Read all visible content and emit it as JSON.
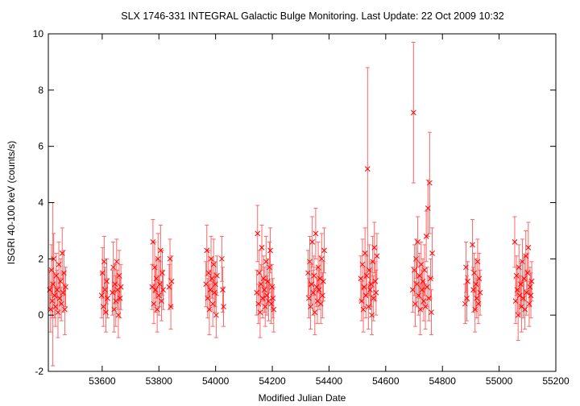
{
  "chart_data": {
    "type": "scatter",
    "title": "SLX 1746-331   INTEGRAL Galactic Bulge Monitoring.  Last Update: 22 Oct 2009 10:32",
    "xlabel": "Modified Julian Date",
    "ylabel": "ISGRI 40-100 keV (counts/s)",
    "xlim": [
      53410,
      55200
    ],
    "ylim": [
      -2,
      10
    ],
    "xticks": [
      53600,
      53800,
      54000,
      54200,
      54400,
      54600,
      54800,
      55000,
      55200
    ],
    "yticks": [
      -2,
      0,
      2,
      4,
      6,
      8,
      10
    ],
    "grid": false,
    "legend": "none",
    "marker": "x",
    "color": "#ff0000",
    "error_color": "#ff6666",
    "series": [
      {
        "points": [
          {
            "x": 53415,
            "y": 0.9,
            "err": 0.7
          },
          {
            "x": 53418,
            "y": 0.2,
            "err": 0.8
          },
          {
            "x": 53421,
            "y": 1.6,
            "err": 0.9
          },
          {
            "x": 53424,
            "y": 0.5,
            "err": 0.6
          },
          {
            "x": 53426,
            "y": 1.1,
            "err": 2.9
          },
          {
            "x": 53429,
            "y": 2.0,
            "err": 0.9
          },
          {
            "x": 53432,
            "y": 0.7,
            "err": 0.8
          },
          {
            "x": 53435,
            "y": 0.3,
            "err": 0.7
          },
          {
            "x": 53438,
            "y": 1.4,
            "err": 0.8
          },
          {
            "x": 53441,
            "y": 0.9,
            "err": 0.7
          },
          {
            "x": 53444,
            "y": 0.1,
            "err": 0.9
          },
          {
            "x": 53447,
            "y": 1.8,
            "err": 0.8
          },
          {
            "x": 53450,
            "y": 0.6,
            "err": 0.7
          },
          {
            "x": 53453,
            "y": 1.2,
            "err": 0.8
          },
          {
            "x": 53456,
            "y": 0.4,
            "err": 0.6
          },
          {
            "x": 53459,
            "y": 2.2,
            "err": 0.9
          },
          {
            "x": 53462,
            "y": 0.8,
            "err": 0.7
          },
          {
            "x": 53465,
            "y": 1.5,
            "err": 0.8
          },
          {
            "x": 53468,
            "y": 0.2,
            "err": 0.9
          },
          {
            "x": 53471,
            "y": 1.0,
            "err": 0.7
          },
          {
            "x": 53598,
            "y": 0.7,
            "err": 0.8
          },
          {
            "x": 53601,
            "y": 1.5,
            "err": 0.9
          },
          {
            "x": 53604,
            "y": 0.3,
            "err": 0.7
          },
          {
            "x": 53607,
            "y": 1.9,
            "err": 0.9
          },
          {
            "x": 53610,
            "y": 0.9,
            "err": 0.8
          },
          {
            "x": 53613,
            "y": 0.1,
            "err": 0.7
          },
          {
            "x": 53616,
            "y": 1.2,
            "err": 0.8
          },
          {
            "x": 53619,
            "y": 0.6,
            "err": 0.7
          },
          {
            "x": 53636,
            "y": 0.8,
            "err": 0.8
          },
          {
            "x": 53639,
            "y": 1.7,
            "err": 0.9
          },
          {
            "x": 53642,
            "y": 0.2,
            "err": 0.8
          },
          {
            "x": 53645,
            "y": 1.1,
            "err": 0.7
          },
          {
            "x": 53648,
            "y": 0.5,
            "err": 0.9
          },
          {
            "x": 53651,
            "y": 1.9,
            "err": 0.8
          },
          {
            "x": 53654,
            "y": 0.9,
            "err": 0.7
          },
          {
            "x": 53657,
            "y": 0.0,
            "err": 0.8
          },
          {
            "x": 53660,
            "y": 1.4,
            "err": 0.9
          },
          {
            "x": 53663,
            "y": 0.6,
            "err": 0.7
          },
          {
            "x": 53666,
            "y": 1.0,
            "err": 0.8
          },
          {
            "x": 53776,
            "y": 1.0,
            "err": 0.8
          },
          {
            "x": 53779,
            "y": 2.6,
            "err": 0.8
          },
          {
            "x": 53782,
            "y": 0.4,
            "err": 0.7
          },
          {
            "x": 53785,
            "y": 1.7,
            "err": 0.9
          },
          {
            "x": 53788,
            "y": 0.9,
            "err": 0.8
          },
          {
            "x": 53791,
            "y": 1.3,
            "err": 0.7
          },
          {
            "x": 53794,
            "y": 0.2,
            "err": 0.8
          },
          {
            "x": 53797,
            "y": 2.0,
            "err": 0.9
          },
          {
            "x": 53800,
            "y": 0.7,
            "err": 0.7
          },
          {
            "x": 53803,
            "y": 1.1,
            "err": 0.8
          },
          {
            "x": 53806,
            "y": 2.3,
            "err": 0.9
          },
          {
            "x": 53809,
            "y": 0.5,
            "err": 0.7
          },
          {
            "x": 53812,
            "y": 1.5,
            "err": 0.8
          },
          {
            "x": 53815,
            "y": 0.9,
            "err": 0.7
          },
          {
            "x": 53836,
            "y": 1.0,
            "err": 0.8
          },
          {
            "x": 53839,
            "y": 2.0,
            "err": 0.7
          },
          {
            "x": 53842,
            "y": 0.3,
            "err": 0.8
          },
          {
            "x": 53845,
            "y": 1.2,
            "err": 0.9
          },
          {
            "x": 53966,
            "y": 1.1,
            "err": 0.8
          },
          {
            "x": 53969,
            "y": 2.3,
            "err": 0.9
          },
          {
            "x": 53972,
            "y": 0.6,
            "err": 0.7
          },
          {
            "x": 53975,
            "y": 1.5,
            "err": 0.8
          },
          {
            "x": 53978,
            "y": 0.2,
            "err": 0.9
          },
          {
            "x": 53981,
            "y": 0.9,
            "err": 0.7
          },
          {
            "x": 53984,
            "y": 2.0,
            "err": 0.8
          },
          {
            "x": 53987,
            "y": 1.3,
            "err": 0.7
          },
          {
            "x": 53990,
            "y": 0.4,
            "err": 0.8
          },
          {
            "x": 53993,
            "y": 1.8,
            "err": 0.9
          },
          {
            "x": 53996,
            "y": 0.8,
            "err": 0.7
          },
          {
            "x": 53999,
            "y": 1.1,
            "err": 0.8
          },
          {
            "x": 54002,
            "y": 0.0,
            "err": 0.8
          },
          {
            "x": 54005,
            "y": 1.4,
            "err": 0.7
          },
          {
            "x": 54022,
            "y": 2.0,
            "err": 0.8
          },
          {
            "x": 54025,
            "y": 0.9,
            "err": 0.8
          },
          {
            "x": 54028,
            "y": 0.3,
            "err": 0.7
          },
          {
            "x": 54145,
            "y": 0.8,
            "err": 0.8
          },
          {
            "x": 54148,
            "y": 2.9,
            "err": 1.0
          },
          {
            "x": 54151,
            "y": 0.4,
            "err": 0.7
          },
          {
            "x": 54154,
            "y": 1.5,
            "err": 0.8
          },
          {
            "x": 54157,
            "y": 0.1,
            "err": 0.9
          },
          {
            "x": 54160,
            "y": 1.1,
            "err": 0.7
          },
          {
            "x": 54163,
            "y": 2.4,
            "err": 0.8
          },
          {
            "x": 54166,
            "y": 0.6,
            "err": 0.7
          },
          {
            "x": 54169,
            "y": 1.3,
            "err": 0.8
          },
          {
            "x": 54172,
            "y": 0.9,
            "err": 0.8
          },
          {
            "x": 54175,
            "y": 0.3,
            "err": 0.7
          },
          {
            "x": 54178,
            "y": 1.9,
            "err": 0.9
          },
          {
            "x": 54181,
            "y": 0.7,
            "err": 0.7
          },
          {
            "x": 54184,
            "y": 1.2,
            "err": 0.8
          },
          {
            "x": 54187,
            "y": 0.5,
            "err": 0.7
          },
          {
            "x": 54190,
            "y": 1.7,
            "err": 0.9
          },
          {
            "x": 54193,
            "y": 2.3,
            "err": 0.8
          },
          {
            "x": 54196,
            "y": 0.4,
            "err": 0.7
          },
          {
            "x": 54199,
            "y": 1.0,
            "err": 0.8
          },
          {
            "x": 54202,
            "y": 0.6,
            "err": 0.7
          },
          {
            "x": 54205,
            "y": 0.2,
            "err": 0.8
          },
          {
            "x": 54326,
            "y": 1.5,
            "err": 0.8
          },
          {
            "x": 54329,
            "y": 0.6,
            "err": 0.7
          },
          {
            "x": 54332,
            "y": 1.9,
            "err": 0.9
          },
          {
            "x": 54335,
            "y": 0.3,
            "err": 0.8
          },
          {
            "x": 54338,
            "y": 1.1,
            "err": 0.7
          },
          {
            "x": 54341,
            "y": 2.6,
            "err": 0.9
          },
          {
            "x": 54344,
            "y": 0.8,
            "err": 0.8
          },
          {
            "x": 54347,
            "y": 1.4,
            "err": 0.7
          },
          {
            "x": 54350,
            "y": 0.1,
            "err": 0.8
          },
          {
            "x": 54353,
            "y": 2.9,
            "err": 0.9
          },
          {
            "x": 54356,
            "y": 1.0,
            "err": 0.7
          },
          {
            "x": 54359,
            "y": 0.5,
            "err": 0.8
          },
          {
            "x": 54362,
            "y": 1.7,
            "err": 0.9
          },
          {
            "x": 54365,
            "y": 0.9,
            "err": 0.7
          },
          {
            "x": 54368,
            "y": 1.3,
            "err": 0.8
          },
          {
            "x": 54371,
            "y": 0.4,
            "err": 0.7
          },
          {
            "x": 54374,
            "y": 2.0,
            "err": 0.9
          },
          {
            "x": 54377,
            "y": 0.7,
            "err": 0.8
          },
          {
            "x": 54380,
            "y": 1.2,
            "err": 0.7
          },
          {
            "x": 54383,
            "y": 2.3,
            "err": 0.8
          },
          {
            "x": 54512,
            "y": 1.3,
            "err": 0.8
          },
          {
            "x": 54515,
            "y": 0.5,
            "err": 0.7
          },
          {
            "x": 54518,
            "y": 1.8,
            "err": 0.9
          },
          {
            "x": 54521,
            "y": 0.2,
            "err": 0.8
          },
          {
            "x": 54524,
            "y": 1.0,
            "err": 0.7
          },
          {
            "x": 54527,
            "y": 2.2,
            "err": 0.9
          },
          {
            "x": 54530,
            "y": 0.7,
            "err": 0.8
          },
          {
            "x": 54533,
            "y": 1.4,
            "err": 0.7
          },
          {
            "x": 54536,
            "y": 5.2,
            "err": 3.6
          },
          {
            "x": 54539,
            "y": 0.3,
            "err": 0.8
          },
          {
            "x": 54542,
            "y": 1.6,
            "err": 0.9
          },
          {
            "x": 54545,
            "y": 0.9,
            "err": 0.7
          },
          {
            "x": 54548,
            "y": 1.1,
            "err": 0.8
          },
          {
            "x": 54551,
            "y": 0.0,
            "err": 0.7
          },
          {
            "x": 54554,
            "y": 1.9,
            "err": 0.9
          },
          {
            "x": 54557,
            "y": 0.6,
            "err": 0.8
          },
          {
            "x": 54560,
            "y": 2.4,
            "err": 0.9
          },
          {
            "x": 54563,
            "y": 1.2,
            "err": 0.7
          },
          {
            "x": 54566,
            "y": 0.8,
            "err": 0.8
          },
          {
            "x": 54569,
            "y": 2.1,
            "err": 0.8
          },
          {
            "x": 54695,
            "y": 0.9,
            "err": 0.8
          },
          {
            "x": 54698,
            "y": 7.2,
            "err": 2.5
          },
          {
            "x": 54701,
            "y": 1.6,
            "err": 0.9
          },
          {
            "x": 54704,
            "y": 0.4,
            "err": 0.8
          },
          {
            "x": 54707,
            "y": 2.0,
            "err": 0.7
          },
          {
            "x": 54710,
            "y": 1.1,
            "err": 0.8
          },
          {
            "x": 54713,
            "y": 2.6,
            "err": 0.9
          },
          {
            "x": 54716,
            "y": 0.7,
            "err": 0.7
          },
          {
            "x": 54719,
            "y": 1.4,
            "err": 0.8
          },
          {
            "x": 54722,
            "y": 0.2,
            "err": 0.9
          },
          {
            "x": 54725,
            "y": 1.8,
            "err": 0.8
          },
          {
            "x": 54728,
            "y": 0.9,
            "err": 0.7
          },
          {
            "x": 54731,
            "y": 1.2,
            "err": 0.8
          },
          {
            "x": 54734,
            "y": 0.5,
            "err": 0.7
          },
          {
            "x": 54737,
            "y": 1.6,
            "err": 0.9
          },
          {
            "x": 54740,
            "y": 0.3,
            "err": 0.8
          },
          {
            "x": 54743,
            "y": 2.8,
            "err": 0.9
          },
          {
            "x": 54746,
            "y": 1.0,
            "err": 0.7
          },
          {
            "x": 54749,
            "y": 3.8,
            "err": 1.0
          },
          {
            "x": 54752,
            "y": 0.6,
            "err": 0.8
          },
          {
            "x": 54755,
            "y": 4.7,
            "err": 1.8
          },
          {
            "x": 54758,
            "y": 1.3,
            "err": 0.7
          },
          {
            "x": 54761,
            "y": 0.1,
            "err": 0.8
          },
          {
            "x": 54764,
            "y": 2.2,
            "err": 0.9
          },
          {
            "x": 54880,
            "y": 0.4,
            "err": 0.7
          },
          {
            "x": 54883,
            "y": 1.7,
            "err": 0.9
          },
          {
            "x": 54886,
            "y": 0.6,
            "err": 0.8
          },
          {
            "x": 54889,
            "y": 1.2,
            "err": 0.7
          },
          {
            "x": 54906,
            "y": 2.5,
            "err": 0.9
          },
          {
            "x": 54909,
            "y": 0.9,
            "err": 0.8
          },
          {
            "x": 54912,
            "y": 1.5,
            "err": 0.7
          },
          {
            "x": 54915,
            "y": 0.2,
            "err": 0.8
          },
          {
            "x": 54918,
            "y": 1.1,
            "err": 0.9
          },
          {
            "x": 54921,
            "y": 0.6,
            "err": 0.7
          },
          {
            "x": 54924,
            "y": 1.9,
            "err": 0.8
          },
          {
            "x": 54927,
            "y": 0.4,
            "err": 0.7
          },
          {
            "x": 54930,
            "y": 1.3,
            "err": 0.9
          },
          {
            "x": 54933,
            "y": 0.8,
            "err": 0.8
          },
          {
            "x": 55055,
            "y": 2.6,
            "err": 0.9
          },
          {
            "x": 55058,
            "y": 0.5,
            "err": 0.8
          },
          {
            "x": 55061,
            "y": 1.4,
            "err": 0.7
          },
          {
            "x": 55064,
            "y": 0.9,
            "err": 0.8
          },
          {
            "x": 55067,
            "y": 0.0,
            "err": 0.9
          },
          {
            "x": 55070,
            "y": 1.7,
            "err": 0.8
          },
          {
            "x": 55073,
            "y": 0.7,
            "err": 0.7
          },
          {
            "x": 55076,
            "y": 1.1,
            "err": 0.8
          },
          {
            "x": 55079,
            "y": 0.3,
            "err": 0.9
          },
          {
            "x": 55082,
            "y": 1.9,
            "err": 0.8
          },
          {
            "x": 55085,
            "y": 0.6,
            "err": 0.7
          },
          {
            "x": 55088,
            "y": 1.3,
            "err": 0.8
          },
          {
            "x": 55091,
            "y": 0.2,
            "err": 0.7
          },
          {
            "x": 55094,
            "y": 2.1,
            "err": 0.9
          },
          {
            "x": 55097,
            "y": 0.8,
            "err": 0.8
          },
          {
            "x": 55100,
            "y": 1.5,
            "err": 0.7
          },
          {
            "x": 55103,
            "y": 2.4,
            "err": 0.9
          },
          {
            "x": 55106,
            "y": 0.4,
            "err": 0.8
          },
          {
            "x": 55109,
            "y": 1.0,
            "err": 0.7
          },
          {
            "x": 55112,
            "y": 0.7,
            "err": 0.8
          },
          {
            "x": 55115,
            "y": 1.2,
            "err": 0.7
          }
        ]
      }
    ]
  }
}
